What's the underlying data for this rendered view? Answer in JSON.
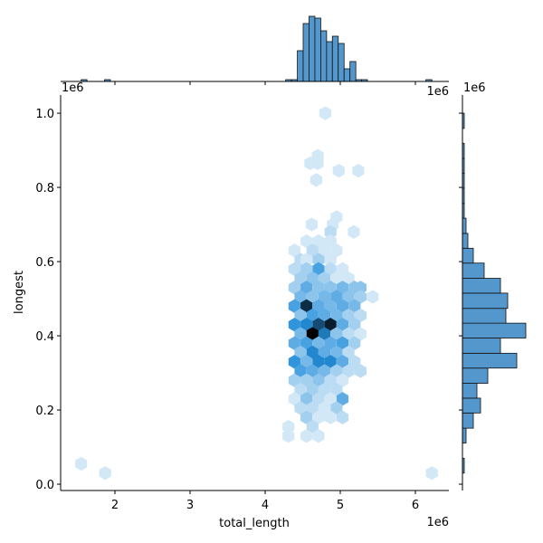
{
  "chart_data": {
    "type": "hexbin",
    "x_label": "total_length",
    "y_label": "longest",
    "x_offset_label": "1e6",
    "xlim": [
      1.277,
      6.446
    ],
    "xticks": [
      2,
      3,
      4,
      5,
      6
    ],
    "ylim": [
      -0.017,
      1.049
    ],
    "yticks": [
      {
        "value": 0,
        "label": "0.0"
      },
      {
        "value": 0.2,
        "label": "0.2"
      },
      {
        "value": 0.4,
        "label": "0.4"
      },
      {
        "value": 0.6,
        "label": "0.6"
      },
      {
        "value": 0.8,
        "label": "0.8"
      },
      {
        "value": 1.0,
        "label": "1.0"
      }
    ],
    "color": "#1f77b4",
    "cells": [
      [
        1.55,
        0.055,
        1
      ],
      [
        1.87,
        0.03,
        1
      ],
      [
        6.22,
        0.03,
        1
      ],
      [
        4.8,
        1.0,
        1
      ],
      [
        4.7,
        0.885,
        1
      ],
      [
        4.6,
        0.865,
        1
      ],
      [
        4.7,
        0.865,
        1
      ],
      [
        4.98,
        0.845,
        1
      ],
      [
        5.24,
        0.845,
        1
      ],
      [
        4.68,
        0.82,
        1
      ],
      [
        4.95,
        0.72,
        1
      ],
      [
        4.62,
        0.7,
        1
      ],
      [
        4.9,
        0.7,
        1
      ],
      [
        5.18,
        0.68,
        1
      ],
      [
        4.87,
        0.68,
        2
      ],
      [
        4.55,
        0.655,
        1
      ],
      [
        4.71,
        0.655,
        1
      ],
      [
        4.87,
        0.655,
        1
      ],
      [
        4.39,
        0.63,
        1
      ],
      [
        4.63,
        0.63,
        2
      ],
      [
        4.79,
        0.63,
        1
      ],
      [
        4.95,
        0.63,
        1
      ],
      [
        4.47,
        0.605,
        2
      ],
      [
        4.55,
        0.605,
        1
      ],
      [
        4.71,
        0.605,
        3
      ],
      [
        4.87,
        0.605,
        1
      ],
      [
        4.39,
        0.58,
        2
      ],
      [
        4.55,
        0.58,
        3
      ],
      [
        4.71,
        0.58,
        7
      ],
      [
        4.87,
        0.58,
        2
      ],
      [
        5.03,
        0.58,
        1
      ],
      [
        4.47,
        0.555,
        3
      ],
      [
        4.63,
        0.555,
        4
      ],
      [
        4.79,
        0.555,
        3
      ],
      [
        4.95,
        0.555,
        1
      ],
      [
        5.11,
        0.555,
        1
      ],
      [
        4.39,
        0.53,
        3
      ],
      [
        4.55,
        0.53,
        6
      ],
      [
        4.71,
        0.53,
        4
      ],
      [
        4.87,
        0.53,
        4
      ],
      [
        5.03,
        0.53,
        5
      ],
      [
        5.19,
        0.53,
        4
      ],
      [
        5.27,
        0.53,
        4
      ],
      [
        4.47,
        0.505,
        5
      ],
      [
        4.63,
        0.505,
        4
      ],
      [
        4.79,
        0.505,
        5
      ],
      [
        4.95,
        0.505,
        6
      ],
      [
        5.11,
        0.505,
        4
      ],
      [
        5.27,
        0.505,
        3
      ],
      [
        5.43,
        0.505,
        1
      ],
      [
        4.39,
        0.48,
        7
      ],
      [
        4.55,
        0.48,
        15
      ],
      [
        4.71,
        0.48,
        6
      ],
      [
        4.87,
        0.48,
        5
      ],
      [
        5.03,
        0.48,
        6
      ],
      [
        5.19,
        0.48,
        5
      ],
      [
        4.47,
        0.455,
        4
      ],
      [
        4.63,
        0.455,
        7
      ],
      [
        4.79,
        0.455,
        6
      ],
      [
        4.95,
        0.455,
        5
      ],
      [
        5.11,
        0.455,
        3
      ],
      [
        5.27,
        0.455,
        2
      ],
      [
        4.39,
        0.43,
        8
      ],
      [
        4.55,
        0.43,
        9
      ],
      [
        4.71,
        0.43,
        13
      ],
      [
        4.87,
        0.43,
        16
      ],
      [
        5.03,
        0.43,
        6
      ],
      [
        5.19,
        0.43,
        3
      ],
      [
        4.47,
        0.405,
        5
      ],
      [
        4.63,
        0.405,
        18
      ],
      [
        4.79,
        0.405,
        10
      ],
      [
        4.95,
        0.405,
        4
      ],
      [
        5.11,
        0.405,
        2
      ],
      [
        5.27,
        0.405,
        1
      ],
      [
        4.39,
        0.38,
        6
      ],
      [
        4.55,
        0.38,
        7
      ],
      [
        4.71,
        0.38,
        5
      ],
      [
        4.87,
        0.38,
        6
      ],
      [
        5.03,
        0.38,
        7
      ],
      [
        5.19,
        0.38,
        3
      ],
      [
        4.47,
        0.355,
        4
      ],
      [
        4.63,
        0.355,
        9
      ],
      [
        4.79,
        0.355,
        6
      ],
      [
        4.95,
        0.355,
        5
      ],
      [
        5.11,
        0.355,
        2
      ],
      [
        4.39,
        0.33,
        8
      ],
      [
        4.55,
        0.33,
        5
      ],
      [
        4.71,
        0.33,
        9
      ],
      [
        4.87,
        0.33,
        9
      ],
      [
        5.03,
        0.33,
        6
      ],
      [
        5.19,
        0.33,
        2
      ],
      [
        4.47,
        0.305,
        7
      ],
      [
        4.63,
        0.305,
        6
      ],
      [
        4.79,
        0.305,
        5
      ],
      [
        4.95,
        0.305,
        3
      ],
      [
        5.11,
        0.305,
        2
      ],
      [
        5.27,
        0.305,
        2
      ],
      [
        4.39,
        0.28,
        3
      ],
      [
        4.55,
        0.28,
        3
      ],
      [
        4.71,
        0.28,
        4
      ],
      [
        4.87,
        0.28,
        2
      ],
      [
        5.03,
        0.28,
        1
      ],
      [
        4.47,
        0.255,
        2
      ],
      [
        4.63,
        0.255,
        3
      ],
      [
        4.79,
        0.255,
        2
      ],
      [
        4.95,
        0.255,
        2
      ],
      [
        4.39,
        0.23,
        1
      ],
      [
        4.55,
        0.23,
        4
      ],
      [
        4.71,
        0.23,
        2
      ],
      [
        4.87,
        0.23,
        1
      ],
      [
        5.03,
        0.23,
        6
      ],
      [
        4.47,
        0.205,
        2
      ],
      [
        4.63,
        0.205,
        2
      ],
      [
        4.79,
        0.205,
        1
      ],
      [
        4.95,
        0.205,
        3
      ],
      [
        4.55,
        0.18,
        3
      ],
      [
        4.71,
        0.18,
        1
      ],
      [
        4.87,
        0.18,
        1
      ],
      [
        5.03,
        0.18,
        2
      ],
      [
        4.31,
        0.155,
        1
      ],
      [
        4.63,
        0.155,
        2
      ],
      [
        4.31,
        0.13,
        1
      ],
      [
        4.55,
        0.13,
        1
      ],
      [
        4.71,
        0.13,
        1
      ]
    ],
    "top_hist": {
      "offset_labels": [
        "1e6",
        "1e6"
      ],
      "bins": [
        1.55,
        1.628,
        1.706,
        1.783,
        1.861,
        1.939,
        2.017,
        2.095,
        2.172,
        2.25,
        2.328,
        2.406,
        2.484,
        2.561,
        2.639,
        2.717,
        2.795,
        2.873,
        2.95,
        3.028,
        3.106,
        3.184,
        3.262,
        3.339,
        3.417,
        3.495,
        3.573,
        3.651,
        3.728,
        3.806,
        3.884,
        3.962,
        4.04,
        4.117,
        4.195,
        4.273,
        4.351,
        4.429,
        4.506,
        4.584,
        4.662,
        4.74,
        4.818,
        4.895,
        4.973,
        5.051,
        5.129,
        5.207,
        5.284,
        5.362,
        5.44,
        5.518,
        5.596,
        5.673,
        5.751,
        5.829,
        5.907,
        5.985,
        6.062,
        6.14,
        6.22
      ],
      "counts": [
        1,
        0,
        0,
        0,
        1,
        0,
        0,
        0,
        0,
        0,
        0,
        0,
        0,
        0,
        0,
        0,
        0,
        0,
        0,
        0,
        0,
        0,
        0,
        0,
        0,
        0,
        0,
        0,
        0,
        0,
        0,
        0,
        0,
        0,
        0,
        1,
        1,
        17,
        32,
        36,
        35,
        28,
        22,
        25,
        21,
        7,
        11,
        1,
        1,
        0,
        0,
        0,
        0,
        0,
        0,
        0,
        0,
        0,
        0,
        1
      ]
    },
    "right_hist": {
      "offset_label": "1e6",
      "bins": [
        0.03,
        0.07,
        0.111,
        0.151,
        0.192,
        0.232,
        0.272,
        0.313,
        0.353,
        0.394,
        0.434,
        0.474,
        0.515,
        0.555,
        0.596,
        0.636,
        0.676,
        0.717,
        0.757,
        0.798,
        0.838,
        0.878,
        0.919,
        0.959,
        1.0
      ],
      "counts": [
        1,
        0,
        2,
        6,
        10,
        8,
        14,
        30,
        21,
        35,
        24,
        25,
        21,
        12,
        6,
        3,
        2,
        1,
        1,
        1,
        1,
        1,
        0,
        1
      ]
    },
    "hist_color": "#5497cc"
  }
}
